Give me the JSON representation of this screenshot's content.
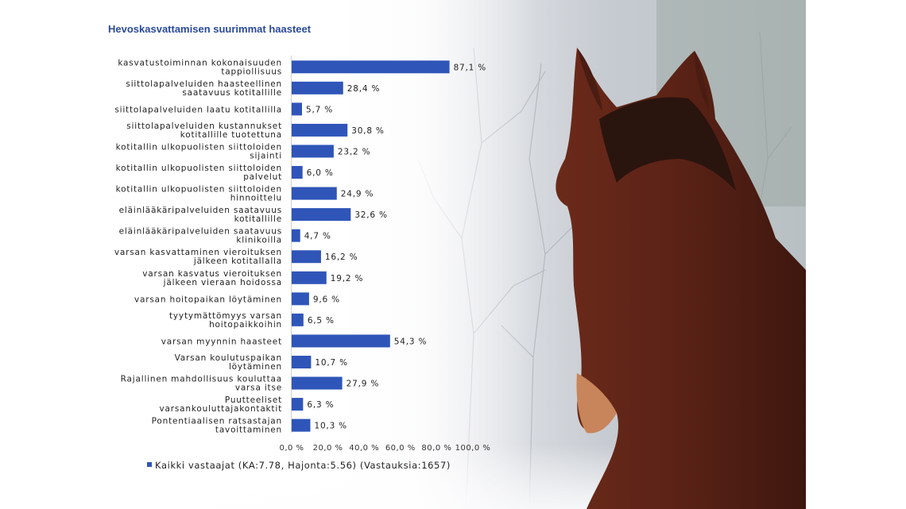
{
  "colors": {
    "bar": "#2f55b8",
    "title": "#2a4a9a"
  },
  "chart_data": {
    "type": "bar",
    "orientation": "horizontal",
    "title": "Hevoskasvattamisen suurimmat haasteet",
    "categories": [
      [
        "kasvatustoiminnan kokonaisuuden",
        "tappiollisuus"
      ],
      [
        "siittolapalveluiden haasteellinen",
        "saatavuus kotitallille"
      ],
      [
        "siittolapalveluiden laatu kotitallilla"
      ],
      [
        "siittolapalveluiden kustannukset",
        "kotitallille tuotettuna"
      ],
      [
        "kotitallin ulkopuolisten siittoloiden",
        "sijainti"
      ],
      [
        "kotitallin ulkopuolisten siittoloiden",
        "palvelut"
      ],
      [
        "kotitallin ulkopuolisten siittoloiden",
        "hinnoittelu"
      ],
      [
        "eläinlääkäripalveluiden saatavuus",
        "kotitallille"
      ],
      [
        "eläinlääkäripalveluiden saatavuus",
        "klinikoilla"
      ],
      [
        "varsan kasvattaminen vieroituksen",
        "jälkeen kotitallalla"
      ],
      [
        "varsan kasvatus vieroituksen",
        "jälkeen vieraan hoidossa"
      ],
      [
        "varsan hoitopaikan löytäminen"
      ],
      [
        "tyytymättömyys varsan",
        "hoitopaikkoihin"
      ],
      [
        "varsan myynnin haasteet"
      ],
      [
        "Varsan koulutuspaikan",
        "löytäminen"
      ],
      [
        "Rajallinen mahdollisuus kouluttaa",
        "varsa itse"
      ],
      [
        "Puutteeliset",
        "varsankouluttajakontaktit"
      ],
      [
        "Pontentiaalisen ratsastajan",
        "tavoittaminen"
      ]
    ],
    "values": [
      87.1,
      28.4,
      5.7,
      30.8,
      23.2,
      6.0,
      24.9,
      32.6,
      4.7,
      16.2,
      19.2,
      9.6,
      6.5,
      54.3,
      10.7,
      27.9,
      6.3,
      10.3
    ],
    "value_labels": [
      "87,1 %",
      "28,4 %",
      "5,7 %",
      "30,8 %",
      "23,2 %",
      "6,0 %",
      "24,9 %",
      "32,6 %",
      "4,7 %",
      "16,2 %",
      "19,2 %",
      "9,6 %",
      "6,5 %",
      "54,3 %",
      "10,7 %",
      "27,9 %",
      "6,3 %",
      "10,3 %"
    ],
    "xlim": [
      0,
      100
    ],
    "xticks": [
      0,
      20,
      40,
      60,
      80,
      100
    ],
    "xtick_labels": [
      "0,0 %",
      "20,0 %",
      "40,0 %",
      "60,0 %",
      "80,0 %",
      "100,0 %"
    ],
    "series": [
      {
        "name": "Kaikki vastaajat (KA:7.78, Hajonta:5.56) (Vastauksia:1657)"
      }
    ],
    "legend_position": "bottom-left",
    "grid": false
  }
}
